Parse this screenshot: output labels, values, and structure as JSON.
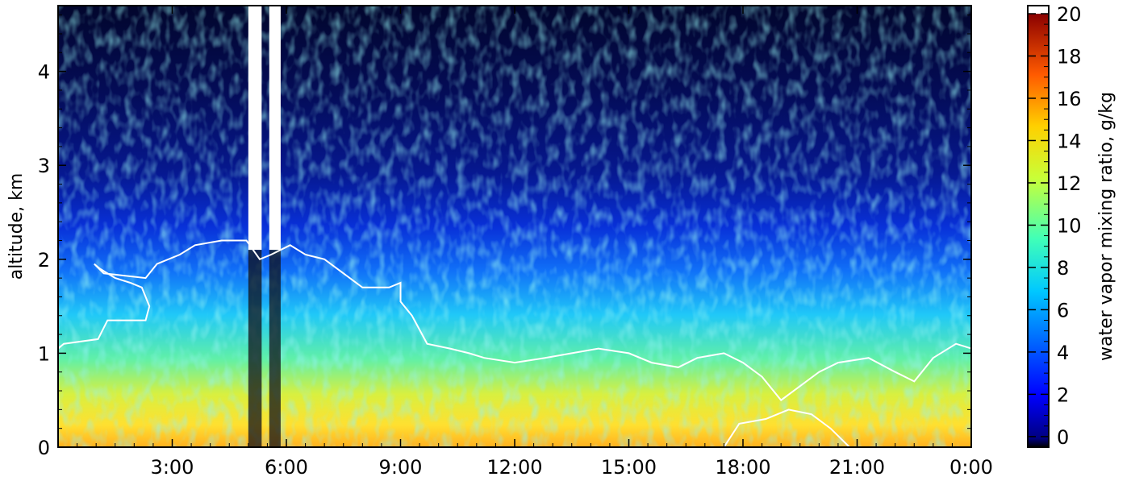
{
  "chart_data": {
    "type": "heatmap",
    "title": "",
    "xlabel": "",
    "ylabel": "altitude, km",
    "x_unit": "hours",
    "x_range": [
      0,
      24
    ],
    "x_ticks": [
      {
        "value": 3,
        "label": "3:00"
      },
      {
        "value": 6,
        "label": "6:00"
      },
      {
        "value": 9,
        "label": "9:00"
      },
      {
        "value": 12,
        "label": "12:00"
      },
      {
        "value": 15,
        "label": "15:00"
      },
      {
        "value": 18,
        "label": "18:00"
      },
      {
        "value": 21,
        "label": "21:00"
      },
      {
        "value": 24,
        "label": "0:00"
      }
    ],
    "ylim": [
      0,
      4.7
    ],
    "y_ticks": [
      {
        "value": 0,
        "label": "0"
      },
      {
        "value": 1,
        "label": "1"
      },
      {
        "value": 2,
        "label": "2"
      },
      {
        "value": 3,
        "label": "3"
      },
      {
        "value": 4,
        "label": "4"
      }
    ],
    "colorbar": {
      "label": "water vapor mixing ratio, g/kg",
      "range": [
        -0.5,
        20
      ],
      "colormap": "jet",
      "ticks": [
        {
          "value": 0,
          "label": "0"
        },
        {
          "value": 2,
          "label": "2"
        },
        {
          "value": 4,
          "label": "4"
        },
        {
          "value": 6,
          "label": "6"
        },
        {
          "value": 8,
          "label": "8"
        },
        {
          "value": 10,
          "label": "10"
        },
        {
          "value": 12,
          "label": "12"
        },
        {
          "value": 14,
          "label": "14"
        },
        {
          "value": 16,
          "label": "16"
        },
        {
          "value": 18,
          "label": "18"
        },
        {
          "value": 20,
          "label": "20"
        }
      ],
      "over_color": "#ffffff",
      "under_color": "#000000"
    },
    "field_description_profile": [
      {
        "altitude_km": 0.1,
        "mixing_ratio": 12.5
      },
      {
        "altitude_km": 0.4,
        "mixing_ratio": 11.5
      },
      {
        "altitude_km": 0.8,
        "mixing_ratio": 9.5
      },
      {
        "altitude_km": 1.2,
        "mixing_ratio": 7.5
      },
      {
        "altitude_km": 1.6,
        "mixing_ratio": 5.5
      },
      {
        "altitude_km": 2.0,
        "mixing_ratio": 3.5
      },
      {
        "altitude_km": 2.5,
        "mixing_ratio": 2.0
      },
      {
        "altitude_km": 3.0,
        "mixing_ratio": 1.2
      },
      {
        "altitude_km": 4.0,
        "mixing_ratio": 0.6
      }
    ],
    "gap_columns_hours": [
      [
        5.0,
        5.35
      ],
      [
        5.55,
        5.85
      ]
    ],
    "contour_boundary_layer": [
      {
        "x": 0.0,
        "y": 1.05
      },
      {
        "x": 0.15,
        "y": 1.1
      },
      {
        "x": 1.05,
        "y": 1.15
      },
      {
        "x": 1.3,
        "y": 1.35
      },
      {
        "x": 2.3,
        "y": 1.35
      },
      {
        "x": 2.4,
        "y": 1.5
      },
      {
        "x": 2.2,
        "y": 1.7
      },
      {
        "x": 1.9,
        "y": 1.75
      },
      {
        "x": 1.5,
        "y": 1.8
      },
      {
        "x": 1.1,
        "y": 1.9
      },
      {
        "x": 0.95,
        "y": 1.95
      },
      {
        "x": 1.2,
        "y": 1.85
      },
      {
        "x": 2.3,
        "y": 1.8
      },
      {
        "x": 2.6,
        "y": 1.95
      },
      {
        "x": 3.2,
        "y": 2.05
      },
      {
        "x": 3.6,
        "y": 2.15
      },
      {
        "x": 4.3,
        "y": 2.2
      },
      {
        "x": 4.95,
        "y": 2.2
      },
      {
        "x": 5.3,
        "y": 2.0
      },
      {
        "x": 5.6,
        "y": 2.05
      },
      {
        "x": 6.1,
        "y": 2.15
      },
      {
        "x": 6.5,
        "y": 2.05
      },
      {
        "x": 7.0,
        "y": 2.0
      },
      {
        "x": 7.5,
        "y": 1.85
      },
      {
        "x": 8.0,
        "y": 1.7
      },
      {
        "x": 8.7,
        "y": 1.7
      },
      {
        "x": 9.0,
        "y": 1.75
      },
      {
        "x": 9.0,
        "y": 1.55
      },
      {
        "x": 9.3,
        "y": 1.4
      },
      {
        "x": 9.7,
        "y": 1.1
      },
      {
        "x": 10.3,
        "y": 1.05
      },
      {
        "x": 10.8,
        "y": 1.0
      },
      {
        "x": 11.2,
        "y": 0.95
      },
      {
        "x": 12.0,
        "y": 0.9
      },
      {
        "x": 12.8,
        "y": 0.95
      },
      {
        "x": 13.5,
        "y": 1.0
      },
      {
        "x": 14.2,
        "y": 1.05
      },
      {
        "x": 15.0,
        "y": 1.0
      },
      {
        "x": 15.6,
        "y": 0.9
      },
      {
        "x": 16.3,
        "y": 0.85
      },
      {
        "x": 16.8,
        "y": 0.95
      },
      {
        "x": 17.5,
        "y": 1.0
      },
      {
        "x": 18.0,
        "y": 0.9
      },
      {
        "x": 18.5,
        "y": 0.75
      },
      {
        "x": 19.0,
        "y": 0.5
      },
      {
        "x": 19.5,
        "y": 0.65
      },
      {
        "x": 20.0,
        "y": 0.8
      },
      {
        "x": 20.5,
        "y": 0.9
      },
      {
        "x": 21.3,
        "y": 0.95
      },
      {
        "x": 22.0,
        "y": 0.8
      },
      {
        "x": 22.5,
        "y": 0.7
      },
      {
        "x": 23.0,
        "y": 0.95
      },
      {
        "x": 23.6,
        "y": 1.1
      },
      {
        "x": 24.0,
        "y": 1.05
      }
    ],
    "contour_surface_layer": [
      {
        "x": 17.5,
        "y": 0.0
      },
      {
        "x": 17.9,
        "y": 0.25
      },
      {
        "x": 18.6,
        "y": 0.3
      },
      {
        "x": 19.2,
        "y": 0.4
      },
      {
        "x": 19.8,
        "y": 0.35
      },
      {
        "x": 20.3,
        "y": 0.2
      },
      {
        "x": 20.8,
        "y": 0.0
      }
    ]
  }
}
